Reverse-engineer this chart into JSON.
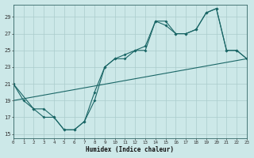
{
  "xlabel": "Humidex (Indice chaleur)",
  "bg_color": "#cce8e8",
  "grid_color": "#aacccc",
  "line_color": "#1a6666",
  "x_ticks": [
    0,
    1,
    2,
    3,
    4,
    5,
    6,
    7,
    8,
    9,
    10,
    11,
    12,
    13,
    14,
    15,
    16,
    17,
    18,
    19,
    20,
    21,
    22,
    23
  ],
  "y_ticks": [
    15,
    17,
    19,
    21,
    23,
    25,
    27,
    29
  ],
  "xlim": [
    0,
    23
  ],
  "ylim": [
    14.5,
    30.5
  ],
  "line1_x": [
    0,
    1,
    2,
    3,
    4,
    5,
    6,
    7,
    8,
    9,
    10,
    11,
    12,
    13,
    14,
    15,
    16,
    17,
    18,
    19,
    20,
    21,
    22,
    23
  ],
  "line1_y": [
    21,
    19,
    18,
    17,
    17,
    15.5,
    15.5,
    16.5,
    20,
    23,
    24,
    24,
    25,
    25,
    28.5,
    28,
    27,
    27,
    27.5,
    29.5,
    30,
    25,
    25,
    24
  ],
  "line2_x": [
    0,
    2,
    3,
    4,
    5,
    6,
    7,
    8,
    9,
    10,
    11,
    12,
    13,
    14,
    15,
    16,
    17,
    18,
    19,
    20,
    21,
    22,
    23
  ],
  "line2_y": [
    21,
    18,
    18,
    17,
    15.5,
    15.5,
    16.5,
    19,
    23,
    24,
    24.5,
    25,
    25.5,
    28.5,
    28.5,
    27,
    27,
    27.5,
    29.5,
    30,
    25,
    25,
    24
  ],
  "line3_x": [
    0,
    23
  ],
  "line3_y": [
    19,
    24
  ]
}
